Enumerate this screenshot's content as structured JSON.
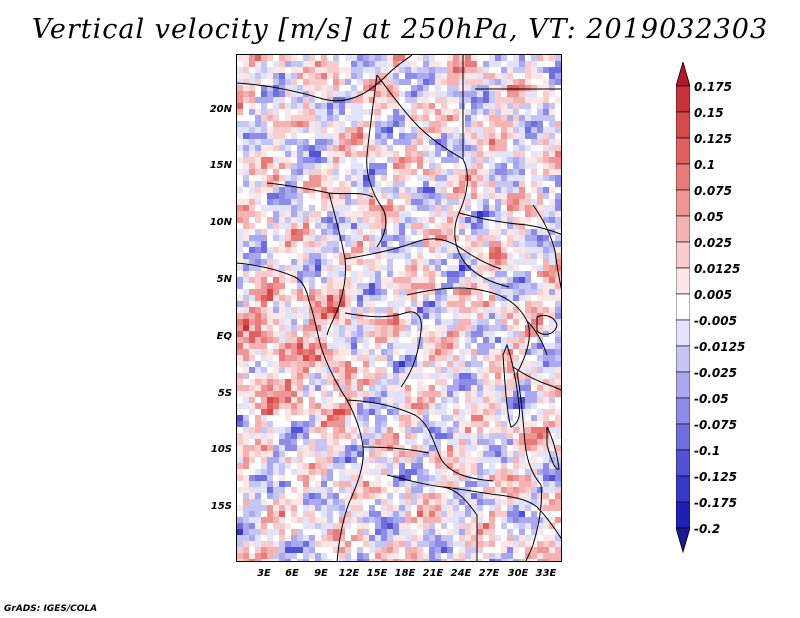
{
  "title": "Vertical velocity [m/s] at 250hPa, VT: 2019032303",
  "credit": "GrADS: IGES/COLA",
  "map": {
    "variable": "Vertical velocity",
    "units": "m/s",
    "level": "250hPa",
    "valid_time": "2019032303",
    "lat_ticks": [
      "20N",
      "15N",
      "10N",
      "5N",
      "EQ",
      "5S",
      "10S",
      "15S"
    ],
    "lon_ticks": [
      "3E",
      "6E",
      "9E",
      "12E",
      "15E",
      "18E",
      "21E",
      "24E",
      "27E",
      "30E",
      "33E"
    ]
  },
  "colorbar": {
    "labels": [
      "0.175",
      "0.15",
      "0.125",
      "0.1",
      "0.075",
      "0.05",
      "0.025",
      "0.0125",
      "0.005",
      "-0.005",
      "-0.0125",
      "-0.025",
      "-0.05",
      "-0.075",
      "-0.1",
      "-0.125",
      "-0.175",
      "-0.2"
    ],
    "colors": [
      "#b2182b",
      "#c8323a",
      "#d84a4a",
      "#e06161",
      "#e87a7a",
      "#ef9696",
      "#f4b2b2",
      "#f8cccc",
      "#fce6e6",
      "#ffffff",
      "#e2e2fb",
      "#c6c6f5",
      "#a9a9ef",
      "#8c8ce8",
      "#6e6edf",
      "#5252d4",
      "#3838c6",
      "#2020b4",
      "#1a1a96"
    ]
  }
}
